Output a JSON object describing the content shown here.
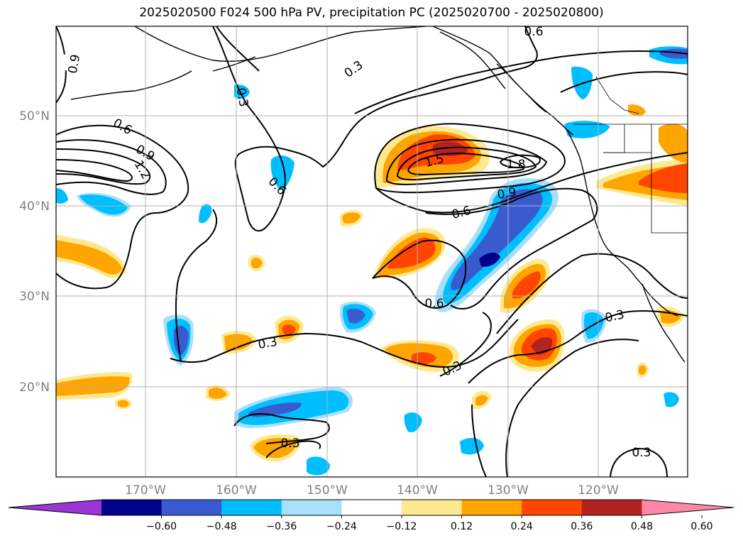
{
  "title": "2025020500 F024 500 hPa PV, precipitation PC (2025020700 - 2025020800)",
  "map": {
    "lat_labels": [
      "50°N",
      "40°N",
      "30°N",
      "20°N"
    ],
    "lon_labels": [
      "170°W",
      "160°W",
      "150°W",
      "140°W",
      "130°W",
      "120°W"
    ],
    "contour_labels": [
      "0.9",
      "0.6",
      "0.9",
      "1.2",
      "0.3",
      "0.3",
      "0.6",
      "0.6",
      "1.5",
      "1.8",
      "0.9",
      "0.6",
      "0.6",
      "0.3",
      "0.3",
      "0.3",
      "0.3",
      "0.3",
      "0.3",
      "0.3"
    ]
  },
  "colorbar": {
    "tick_labels": [
      "−0.60",
      "−0.48",
      "−0.36",
      "−0.24",
      "−0.12",
      "0.12",
      "0.24",
      "0.36",
      "0.48",
      "0.60"
    ],
    "colors": [
      "#9a35d6",
      "#00008b",
      "#3a5bd0",
      "#00bfff",
      "#a8e0fb",
      "#ffffff",
      "#ffe990",
      "#ffa500",
      "#ff4500",
      "#b22222",
      "#ff88aa"
    ]
  }
}
